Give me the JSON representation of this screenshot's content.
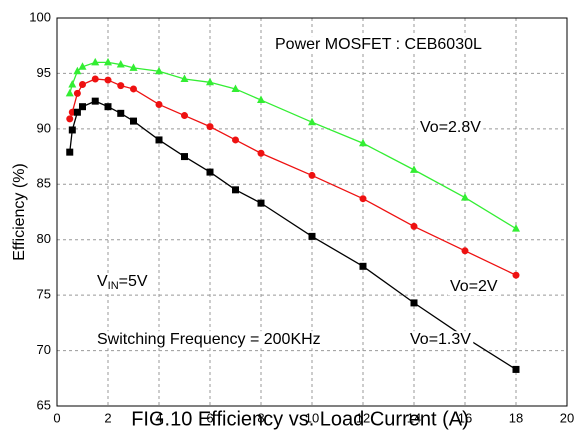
{
  "chart_data": {
    "type": "line",
    "title": "FIG.10 Efficiency vs. Load Current (A)",
    "y_label": "Efficiency (%)",
    "x": [
      0.5,
      0.6,
      0.8,
      1,
      1.5,
      2,
      2.5,
      3,
      4,
      5,
      6,
      7,
      8,
      10,
      12,
      14,
      16,
      18
    ],
    "series": [
      {
        "name": "Vo=2.8V",
        "color": "#33ee33",
        "marker": "triangle",
        "values": [
          93.2,
          94,
          95.2,
          95.6,
          96,
          96,
          95.8,
          95.5,
          95.2,
          94.5,
          94.2,
          93.6,
          92.6,
          90.6,
          88.7,
          86.3,
          83.8,
          81
        ]
      },
      {
        "name": "Vo=2V",
        "color": "#ee1111",
        "marker": "circle",
        "values": [
          90.9,
          91.5,
          93.2,
          94,
          94.5,
          94.4,
          93.9,
          93.6,
          92.2,
          91.2,
          90.2,
          89,
          87.8,
          85.8,
          83.7,
          81.2,
          79,
          76.8
        ]
      },
      {
        "name": "Vo=1.3V",
        "color": "#000000",
        "marker": "square",
        "values": [
          87.9,
          89.9,
          91.5,
          92,
          92.5,
          92,
          91.4,
          90.7,
          89,
          87.5,
          86.1,
          84.5,
          83.3,
          80.3,
          77.6,
          74.3,
          71.2,
          68.3
        ]
      }
    ],
    "annotations": [
      "Power MOSFET : CEB6030L",
      "Switching Frequency = 200KHz"
    ],
    "vin_label": {
      "main": "V",
      "sub": "IN",
      "rest": "=5V"
    },
    "xlim": [
      0,
      20
    ],
    "xticks": [
      0,
      2,
      4,
      6,
      8,
      10,
      12,
      14,
      16,
      18,
      20
    ],
    "ylim": [
      65,
      100
    ],
    "yticks": [
      65,
      70,
      75,
      80,
      85,
      90,
      95,
      100
    ],
    "grid": true
  }
}
